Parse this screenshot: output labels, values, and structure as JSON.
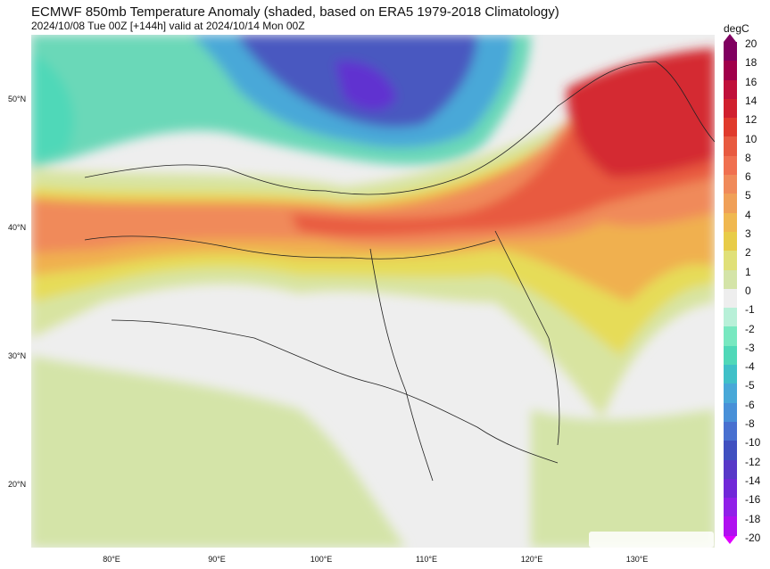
{
  "header": {
    "title": "ECMWF 850mb Temperature Anomaly (shaded, based on ERA5 1979-2018 Climatology)",
    "subtitle": "2024/10/08 Tue 00Z [+144h] valid at 2024/10/14 Mon 00Z"
  },
  "map": {
    "lat_labels": [
      "50°N",
      "40°N",
      "30°N",
      "20°N"
    ],
    "lon_labels": [
      "80°E",
      "90°E",
      "100°E",
      "110°E",
      "120°E",
      "130°E"
    ]
  },
  "colorbar": {
    "unit": "degC",
    "ticks": [
      "20",
      "18",
      "16",
      "14",
      "12",
      "10",
      "8",
      "6",
      "5",
      "4",
      "3",
      "2",
      "1",
      "0",
      "-1",
      "-2",
      "-3",
      "-4",
      "-5",
      "-6",
      "-8",
      "-10",
      "-12",
      "-14",
      "-16",
      "-18",
      "-20"
    ],
    "colors": [
      "#800060",
      "#a0004a",
      "#c0103a",
      "#d0202e",
      "#e03a2c",
      "#e85a40",
      "#f07050",
      "#f08a5a",
      "#f0a058",
      "#f0b850",
      "#e8cc48",
      "#e0e078",
      "#d4e4a8",
      "#eeeeee",
      "#b8f0d8",
      "#78e8c0",
      "#50d8b8",
      "#40c0c8",
      "#48a8d8",
      "#4890d8",
      "#4870d0",
      "#4050c0",
      "#5838c8",
      "#7028d8",
      "#9020e8",
      "#b010f0",
      "#d000ff"
    ]
  }
}
